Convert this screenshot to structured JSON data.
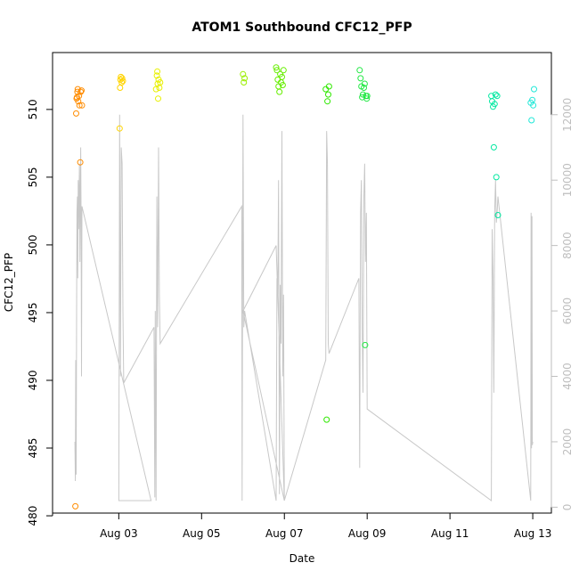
{
  "chart_data": {
    "type": "scatter",
    "title": "ATOM1 Southbound CFC12_PFP",
    "xlabel": "Date",
    "ylabel": "CFC12_PFP",
    "x_ticks": [
      {
        "day": 3,
        "label": "Aug 03"
      },
      {
        "day": 5,
        "label": "Aug 05"
      },
      {
        "day": 7,
        "label": "Aug 07"
      },
      {
        "day": 9,
        "label": "Aug 09"
      },
      {
        "day": 11,
        "label": "Aug 11"
      },
      {
        "day": 13,
        "label": "Aug 13"
      }
    ],
    "xlim": [
      1.4,
      13.45
    ],
    "ylim": [
      480.2,
      514.2
    ],
    "y_ticks": [
      480,
      485,
      490,
      495,
      500,
      505,
      510
    ],
    "y2lim": [
      -180,
      13900
    ],
    "y2_ticks": [
      0,
      2000,
      4000,
      6000,
      8000,
      10000,
      12000
    ],
    "series": [
      {
        "color": "#ff8c00",
        "points": [
          [
            1.95,
            480.7
          ],
          [
            1.97,
            509.7
          ],
          [
            1.98,
            510.8
          ],
          [
            1.99,
            510.9
          ],
          [
            2.0,
            511.3
          ],
          [
            2.01,
            511.5
          ],
          [
            2.02,
            510.6
          ],
          [
            2.04,
            511.0
          ],
          [
            2.05,
            510.3
          ],
          [
            2.07,
            506.1
          ],
          [
            2.08,
            511.3
          ],
          [
            2.1,
            511.4
          ],
          [
            2.11,
            510.3
          ]
        ]
      },
      {
        "color": "#ffd400",
        "points": [
          [
            3.02,
            508.6
          ],
          [
            3.03,
            511.6
          ],
          [
            3.04,
            512.2
          ],
          [
            3.05,
            512.4
          ],
          [
            3.07,
            512.0
          ],
          [
            3.08,
            512.3
          ],
          [
            3.1,
            512.1
          ]
        ]
      },
      {
        "color": "#e8f000",
        "points": [
          [
            3.9,
            511.5
          ],
          [
            3.92,
            512.5
          ],
          [
            3.93,
            512.8
          ],
          [
            3.94,
            511.9
          ],
          [
            3.95,
            510.8
          ],
          [
            3.96,
            512.2
          ],
          [
            3.98,
            511.6
          ],
          [
            4.0,
            512.0
          ]
        ]
      },
      {
        "color": "#9aef00",
        "points": [
          [
            6.0,
            512.6
          ],
          [
            6.02,
            512.0
          ],
          [
            6.04,
            512.3
          ]
        ]
      },
      {
        "color": "#66ee00",
        "points": [
          [
            6.8,
            513.1
          ],
          [
            6.82,
            512.9
          ],
          [
            6.84,
            512.2
          ],
          [
            6.86,
            511.7
          ],
          [
            6.88,
            511.3
          ],
          [
            6.9,
            512.6
          ],
          [
            6.92,
            512.0
          ],
          [
            6.94,
            512.4
          ],
          [
            6.96,
            511.8
          ],
          [
            6.98,
            512.9
          ]
        ]
      },
      {
        "color": "#2fe800",
        "points": [
          [
            8.0,
            511.5
          ],
          [
            8.02,
            487.1
          ],
          [
            8.04,
            510.6
          ],
          [
            8.06,
            511.1
          ],
          [
            8.08,
            511.7
          ]
        ]
      },
      {
        "color": "#22e844",
        "points": [
          [
            8.82,
            512.9
          ],
          [
            8.84,
            512.3
          ],
          [
            8.86,
            511.7
          ],
          [
            8.88,
            510.9
          ],
          [
            8.9,
            511.1
          ],
          [
            8.92,
            511.6
          ],
          [
            8.94,
            511.9
          ],
          [
            8.95,
            492.6
          ],
          [
            8.97,
            511.0
          ],
          [
            8.99,
            510.8
          ],
          [
            9.0,
            511.0
          ]
        ]
      },
      {
        "color": "#00e8a0",
        "points": [
          [
            12.0,
            511.0
          ],
          [
            12.02,
            510.6
          ],
          [
            12.04,
            510.2
          ],
          [
            12.06,
            507.2
          ],
          [
            12.08,
            510.4
          ],
          [
            12.1,
            511.1
          ],
          [
            12.12,
            505.0
          ],
          [
            12.14,
            511.0
          ],
          [
            12.16,
            502.2
          ]
        ]
      },
      {
        "color": "#22e8d8",
        "points": [
          [
            12.95,
            510.5
          ],
          [
            12.97,
            509.2
          ],
          [
            12.99,
            510.7
          ],
          [
            13.01,
            510.3
          ],
          [
            13.03,
            511.5
          ]
        ]
      }
    ],
    "secondary_line": {
      "color": "#c8c8c8",
      "points": [
        [
          1.94,
          2000
        ],
        [
          1.95,
          800
        ],
        [
          1.96,
          4500
        ],
        [
          1.97,
          1000
        ],
        [
          1.98,
          6000
        ],
        [
          1.99,
          9000
        ],
        [
          2.0,
          9500
        ],
        [
          2.01,
          7000
        ],
        [
          2.02,
          10000
        ],
        [
          2.03,
          8500
        ],
        [
          2.04,
          9500
        ],
        [
          2.05,
          10500
        ],
        [
          2.06,
          7500
        ],
        [
          2.07,
          9000
        ],
        [
          2.08,
          11000
        ],
        [
          2.09,
          8500
        ],
        [
          2.1,
          4000
        ],
        [
          2.11,
          9200
        ],
        [
          3.78,
          200
        ],
        [
          3.0,
          200
        ],
        [
          3.02,
          12000
        ],
        [
          3.04,
          4000
        ],
        [
          3.06,
          11000
        ],
        [
          3.08,
          10500
        ],
        [
          3.1,
          6000
        ],
        [
          3.12,
          3800
        ],
        [
          3.85,
          5500
        ],
        [
          3.87,
          300
        ],
        [
          3.88,
          6000
        ],
        [
          3.9,
          200
        ],
        [
          3.92,
          9500
        ],
        [
          3.94,
          5500
        ],
        [
          3.96,
          11000
        ],
        [
          3.98,
          6500
        ],
        [
          4.0,
          5000
        ],
        [
          5.97,
          9200
        ],
        [
          5.98,
          200
        ],
        [
          6.0,
          12000
        ],
        [
          6.02,
          5500
        ],
        [
          6.04,
          6000
        ],
        [
          6.8,
          200
        ],
        [
          6.82,
          7000
        ],
        [
          6.84,
          6500
        ],
        [
          6.86,
          10000
        ],
        [
          6.88,
          400
        ],
        [
          6.9,
          6800
        ],
        [
          6.92,
          5000
        ],
        [
          6.94,
          11500
        ],
        [
          6.96,
          4000
        ],
        [
          6.98,
          6500
        ],
        [
          7.0,
          200
        ],
        [
          6.0,
          6000
        ],
        [
          6.8,
          8000
        ],
        [
          7.0,
          200
        ],
        [
          8.0,
          4500
        ],
        [
          8.02,
          11500
        ],
        [
          8.04,
          10500
        ],
        [
          8.06,
          5000
        ],
        [
          8.08,
          4700
        ],
        [
          8.8,
          7000
        ],
        [
          8.82,
          1200
        ],
        [
          8.84,
          9000
        ],
        [
          8.86,
          10000
        ],
        [
          8.88,
          5500
        ],
        [
          8.9,
          3500
        ],
        [
          8.92,
          9500
        ],
        [
          8.94,
          10500
        ],
        [
          8.96,
          7500
        ],
        [
          8.98,
          9000
        ],
        [
          9.0,
          3000
        ],
        [
          12.0,
          200
        ],
        [
          12.02,
          8500
        ],
        [
          12.04,
          7000
        ],
        [
          12.06,
          3500
        ],
        [
          12.08,
          9000
        ],
        [
          12.1,
          10000
        ],
        [
          12.12,
          8700
        ],
        [
          12.14,
          9000
        ],
        [
          12.16,
          9500
        ],
        [
          12.95,
          200
        ],
        [
          12.96,
          9000
        ],
        [
          12.97,
          1800
        ],
        [
          12.98,
          8900
        ],
        [
          12.99,
          1900
        ],
        [
          13.0,
          2000
        ]
      ]
    }
  }
}
